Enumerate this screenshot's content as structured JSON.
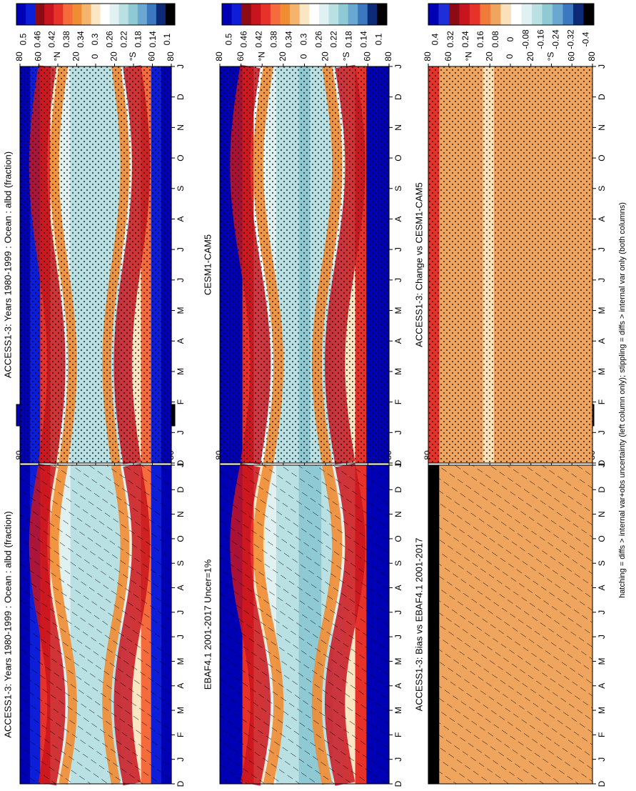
{
  "chart_data": [
    {
      "type": "heatmap",
      "title": "ACCESS1-3: Years 1980-1999 : Ocean : albd (fraction)",
      "x_months": [
        "D",
        "J",
        "F",
        "M",
        "A",
        "M",
        "J",
        "J",
        "A",
        "S",
        "O",
        "N",
        "D",
        "J"
      ],
      "y_ticks": [
        "80",
        "60",
        "°N",
        "20",
        "0",
        "20",
        "°S",
        "60",
        "80"
      ],
      "colorbar_labels": [
        "0.5",
        "0.46",
        "0.42",
        "0.38",
        "0.34",
        "0.3",
        "0.26",
        "0.22",
        "0.18",
        "0.14",
        "0.1"
      ],
      "overlay": "hatching",
      "band_values": [
        0.5,
        0.47,
        0.4,
        0.32,
        0.26,
        0.24,
        0.24,
        0.22,
        0.23,
        0.25,
        0.28,
        0.32,
        0.38,
        0.47,
        0.5
      ]
    },
    {
      "type": "heatmap",
      "title": "ACCESS1-3: Years 1980-1999 : Ocean : albd (fraction)",
      "x_months": [
        "D",
        "J",
        "F",
        "M",
        "A",
        "M",
        "J",
        "J",
        "A",
        "S",
        "O",
        "N",
        "D",
        "J"
      ],
      "y_ticks": [
        "80",
        "60",
        "°N",
        "20",
        "0",
        "20",
        "°S",
        "60",
        "80"
      ],
      "colorbar_labels": [
        "0.5",
        "0.46",
        "0.42",
        "0.38",
        "0.34",
        "0.3",
        "0.26",
        "0.22",
        "0.18",
        "0.14",
        "0.1"
      ],
      "overlay": "stippling",
      "band_values": [
        0.5,
        0.47,
        0.4,
        0.32,
        0.26,
        0.24,
        0.24,
        0.22,
        0.23,
        0.25,
        0.28,
        0.32,
        0.38,
        0.47,
        0.5
      ]
    },
    {
      "type": "heatmap",
      "title": "EBAF4.1 2001-2017 Uncer=1%",
      "x_months": [
        "D",
        "J",
        "F",
        "M",
        "A",
        "M",
        "J",
        "J",
        "A",
        "S",
        "O",
        "N",
        "D",
        "J"
      ],
      "y_ticks": [
        "80",
        "60",
        "°N",
        "20",
        "0",
        "20",
        "°S",
        "60",
        "80"
      ],
      "colorbar_labels": [
        "0.5",
        "0.46",
        "0.42",
        "0.38",
        "0.34",
        "0.3",
        "0.26",
        "0.22",
        "0.18",
        "0.14",
        "0.1"
      ],
      "overlay": "hatching",
      "band_values": [
        0.5,
        0.48,
        0.4,
        0.32,
        0.27,
        0.24,
        0.22,
        0.2,
        0.21,
        0.24,
        0.28,
        0.33,
        0.4,
        0.48,
        0.5
      ]
    },
    {
      "type": "heatmap",
      "title": "CESM1-CAM5",
      "x_months": [
        "D",
        "J",
        "F",
        "M",
        "A",
        "M",
        "J",
        "J",
        "A",
        "S",
        "O",
        "N",
        "D",
        "J"
      ],
      "y_ticks": [
        "80",
        "60",
        "°N",
        "20",
        "0",
        "20",
        "°S",
        "60",
        "80"
      ],
      "colorbar_labels": [
        "0.5",
        "0.46",
        "0.42",
        "0.38",
        "0.34",
        "0.3",
        "0.26",
        "0.22",
        "0.18",
        "0.14",
        "0.1"
      ],
      "overlay": "stippling",
      "band_values": [
        0.5,
        0.49,
        0.4,
        0.3,
        0.26,
        0.24,
        0.22,
        0.2,
        0.22,
        0.24,
        0.27,
        0.32,
        0.4,
        0.48,
        0.5
      ]
    },
    {
      "type": "heatmap",
      "title": "ACCESS1-3: Bias vs EBAF4.1 2001-2017",
      "x_months": [
        "D",
        "J",
        "F",
        "M",
        "A",
        "M",
        "J",
        "J",
        "A",
        "S",
        "O",
        "N",
        "D",
        "J"
      ],
      "y_ticks": [
        "80",
        "60",
        "°N",
        "20",
        "0",
        "20",
        "°S",
        "60",
        "80"
      ],
      "colorbar_labels": [
        "0.4",
        "0.32",
        "0.24",
        "0.16",
        "0.08",
        "0",
        "-0.08",
        "-0.16",
        "-0.24",
        "-0.32",
        "-0.4"
      ],
      "overlay": "hatching",
      "band_values": [
        -0.4,
        0.06,
        0.05,
        0.06,
        0.04,
        0.06,
        0.05,
        0.06,
        0.05,
        0.04,
        0.06,
        0.05,
        0.06,
        0.05,
        0.04
      ]
    },
    {
      "type": "heatmap",
      "title": "ACCESS1-3: Change vs CESM1-CAM5",
      "x_months": [
        "D",
        "J",
        "F",
        "M",
        "A",
        "M",
        "J",
        "J",
        "A",
        "S",
        "O",
        "N",
        "D",
        "J"
      ],
      "y_ticks": [
        "80",
        "60",
        "°N",
        "20",
        "0",
        "20",
        "°S",
        "60",
        "80"
      ],
      "colorbar_labels": [
        "0.4",
        "0.32",
        "0.24",
        "0.16",
        "0.08",
        "0",
        "-0.08",
        "-0.16",
        "-0.24",
        "-0.32",
        "-0.4"
      ],
      "overlay": "stippling",
      "band_values": [
        0.12,
        0.06,
        0.05,
        0.06,
        0.04,
        0.03,
        0.05,
        0.06,
        0.05,
        0.04,
        0.06,
        0.05,
        0.06,
        0.05,
        0.04
      ]
    }
  ],
  "colors": {
    "seq": [
      "#0000b4",
      "#0c1ed8",
      "#8b0a14",
      "#c8141e",
      "#e63228",
      "#f56b3b",
      "#f08c32",
      "#f5b46e",
      "#fae6c3",
      "#ffffff",
      "#dff1f1",
      "#b9e0e3",
      "#8fcad4",
      "#6aa8d2",
      "#3b78bf",
      "#0d2a78",
      "#000000"
    ],
    "diff": [
      "#0000b4",
      "#1e2fd8",
      "#8b0a14",
      "#c8141e",
      "#e63228",
      "#f07a3a",
      "#f0a55f",
      "#fae1b9",
      "#ffffff",
      "#dff1f1",
      "#b9e0e3",
      "#8fcad4",
      "#6aa8d2",
      "#3b78bf",
      "#0d2a78",
      "#000000"
    ]
  },
  "footnote": "hatching = diffs > internal var+obs uncertainty (left column only); stippling = diffs > internal var only (both columns)"
}
